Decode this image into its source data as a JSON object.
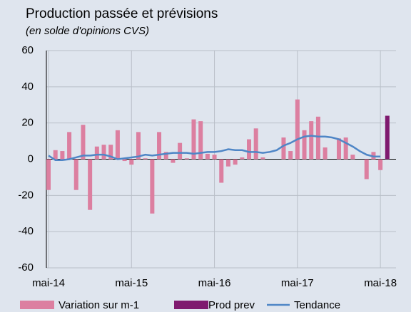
{
  "chart_data": {
    "type": "bar",
    "title": "Production passée et prévisions",
    "subtitle": "(en solde d'opinions CVS)",
    "categories": [
      "mai-14",
      null,
      null,
      null,
      null,
      null,
      null,
      null,
      null,
      null,
      null,
      null,
      "mai-15",
      null,
      null,
      null,
      null,
      null,
      null,
      null,
      null,
      null,
      null,
      null,
      "mai-16",
      null,
      null,
      null,
      null,
      null,
      null,
      null,
      null,
      null,
      null,
      null,
      "mai-17",
      null,
      null,
      null,
      null,
      null,
      null,
      null,
      null,
      null,
      null,
      null,
      "mai-18",
      null
    ],
    "series": [
      {
        "name": "Variation sur m-1",
        "type": "bar",
        "color": "#dc7fa0",
        "values": [
          -17,
          5,
          4.5,
          15,
          -17,
          19,
          -28,
          7,
          8,
          8,
          16,
          -1,
          -3,
          15,
          0.5,
          -30,
          15,
          4,
          -2,
          9,
          0.5,
          22,
          21,
          3,
          2.5,
          -13,
          -4,
          -3,
          1,
          11,
          17,
          1,
          0,
          0,
          12,
          4.5,
          33,
          16,
          21,
          23.5,
          6.5,
          0,
          11.5,
          12,
          2.5,
          0,
          -11,
          4,
          -6,
          null
        ]
      },
      {
        "name": "Prod prev",
        "type": "bar",
        "color": "#7f1a6f",
        "values": [
          null,
          null,
          null,
          null,
          null,
          null,
          null,
          null,
          null,
          null,
          null,
          null,
          null,
          null,
          null,
          null,
          null,
          null,
          null,
          null,
          null,
          null,
          null,
          null,
          null,
          null,
          null,
          null,
          null,
          null,
          null,
          null,
          null,
          null,
          null,
          null,
          null,
          null,
          null,
          null,
          null,
          null,
          null,
          null,
          null,
          null,
          null,
          null,
          null,
          24
        ]
      },
      {
        "name": "Tendance",
        "type": "line",
        "color": "#4f86c6",
        "values": [
          2,
          -0.5,
          -0.5,
          0,
          1,
          2,
          2,
          2.5,
          2.5,
          1.5,
          0,
          0.5,
          1,
          1.5,
          2.5,
          2,
          2.5,
          3,
          3.5,
          3.5,
          3.5,
          3,
          3.5,
          4,
          4,
          4.5,
          5.5,
          5,
          5,
          4,
          4,
          3.5,
          4,
          5,
          7.5,
          9,
          11,
          12.5,
          13,
          12.5,
          12.5,
          12,
          11,
          9,
          7,
          4.5,
          2.5,
          1.5,
          1.5,
          null
        ]
      }
    ],
    "ylim": [
      -60,
      60
    ],
    "yticks": [
      -60,
      -40,
      -20,
      0,
      20,
      40,
      60
    ],
    "grid": true,
    "legend": "bottom"
  }
}
